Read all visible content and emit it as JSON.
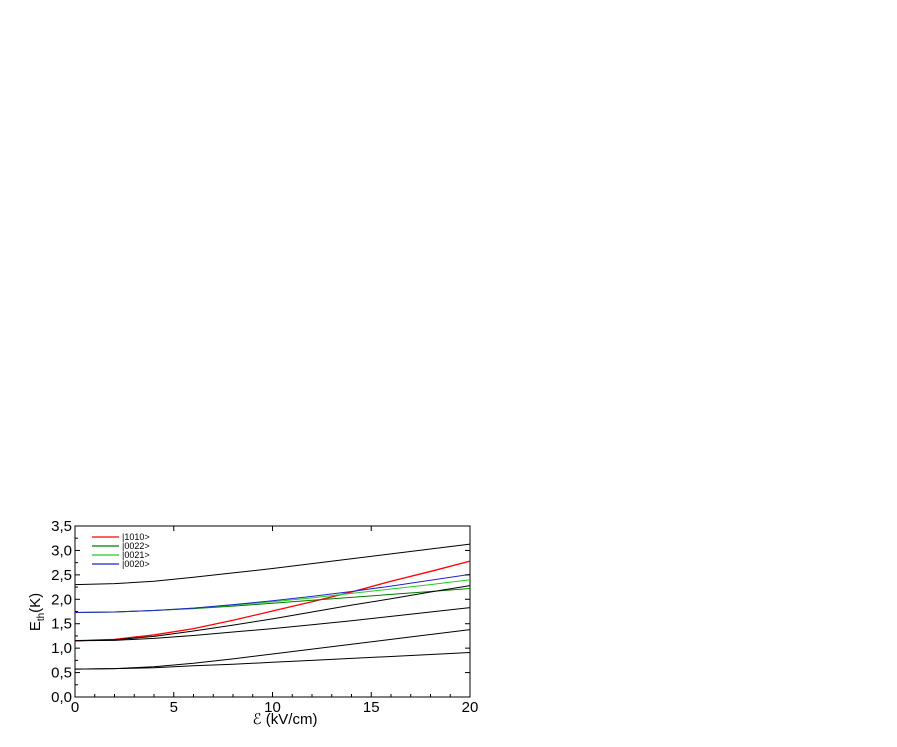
{
  "chart_data": {
    "type": "line",
    "xlabel": "ℰ (kV/cm)",
    "ylabel_main": "E",
    "ylabel_sub": "th",
    "ylabel_unit": "(K)",
    "xlim": [
      0,
      20
    ],
    "ylim": [
      0,
      3.5
    ],
    "x_ticks": [
      0,
      5,
      10,
      15,
      20
    ],
    "x_tick_labels": [
      "0",
      "5",
      "10",
      "15",
      "20"
    ],
    "y_ticks": [
      0,
      0.5,
      1.0,
      1.5,
      2.0,
      2.5,
      3.0,
      3.5
    ],
    "y_tick_labels": [
      "0,0",
      "0,5",
      "1,0",
      "1,5",
      "2,0",
      "2,5",
      "3,0",
      "3,5"
    ],
    "grid": false,
    "legend_position": "top-left",
    "series": [
      {
        "name": "|1010>",
        "color": "#ff0000",
        "x": [
          0,
          2,
          4,
          6,
          8,
          10,
          12,
          14,
          16,
          18,
          20
        ],
        "y": [
          1.15,
          1.18,
          1.27,
          1.4,
          1.57,
          1.76,
          1.95,
          2.15,
          2.37,
          2.57,
          2.78
        ]
      },
      {
        "name": "|0022>",
        "color": "#007a00",
        "x": [
          0,
          2,
          4,
          6,
          8,
          10,
          12,
          14,
          16,
          18,
          20
        ],
        "y": [
          1.73,
          1.74,
          1.77,
          1.81,
          1.86,
          1.92,
          1.98,
          2.04,
          2.1,
          2.16,
          2.22
        ]
      },
      {
        "name": "|0021>",
        "color": "#22cc22",
        "x": [
          0,
          2,
          4,
          6,
          8,
          10,
          12,
          14,
          16,
          18,
          20
        ],
        "y": [
          1.73,
          1.74,
          1.77,
          1.82,
          1.88,
          1.95,
          2.03,
          2.12,
          2.21,
          2.3,
          2.4
        ]
      },
      {
        "name": "|0020>",
        "color": "#2222cc",
        "x": [
          0,
          2,
          4,
          6,
          8,
          10,
          12,
          14,
          16,
          18,
          20
        ],
        "y": [
          1.73,
          1.74,
          1.77,
          1.82,
          1.89,
          1.97,
          2.06,
          2.16,
          2.27,
          2.39,
          2.51
        ]
      },
      {
        "color": "#000000",
        "x": [
          0,
          2,
          4,
          6,
          8,
          10,
          12,
          14,
          16,
          18,
          20
        ],
        "y": [
          2.3,
          2.32,
          2.37,
          2.45,
          2.54,
          2.63,
          2.73,
          2.83,
          2.93,
          3.03,
          3.13
        ]
      },
      {
        "color": "#000000",
        "x": [
          0,
          2,
          4,
          6,
          8,
          10,
          12,
          14,
          16,
          18,
          20
        ],
        "y": [
          1.15,
          1.17,
          1.24,
          1.35,
          1.47,
          1.6,
          1.74,
          1.88,
          2.01,
          2.15,
          2.28
        ]
      },
      {
        "color": "#000000",
        "x": [
          0,
          2,
          4,
          6,
          8,
          10,
          12,
          14,
          16,
          18,
          20
        ],
        "y": [
          1.15,
          1.16,
          1.2,
          1.26,
          1.33,
          1.4,
          1.48,
          1.56,
          1.65,
          1.74,
          1.83
        ]
      },
      {
        "color": "#000000",
        "x": [
          0,
          2,
          4,
          6,
          8,
          10,
          12,
          14,
          16,
          18,
          20
        ],
        "y": [
          0.57,
          0.58,
          0.62,
          0.69,
          0.78,
          0.88,
          0.98,
          1.08,
          1.18,
          1.28,
          1.38
        ]
      },
      {
        "color": "#000000",
        "x": [
          0,
          2,
          4,
          6,
          8,
          10,
          12,
          14,
          16,
          18,
          20
        ],
        "y": [
          0.57,
          0.58,
          0.6,
          0.64,
          0.67,
          0.71,
          0.75,
          0.79,
          0.83,
          0.87,
          0.91
        ]
      }
    ]
  }
}
